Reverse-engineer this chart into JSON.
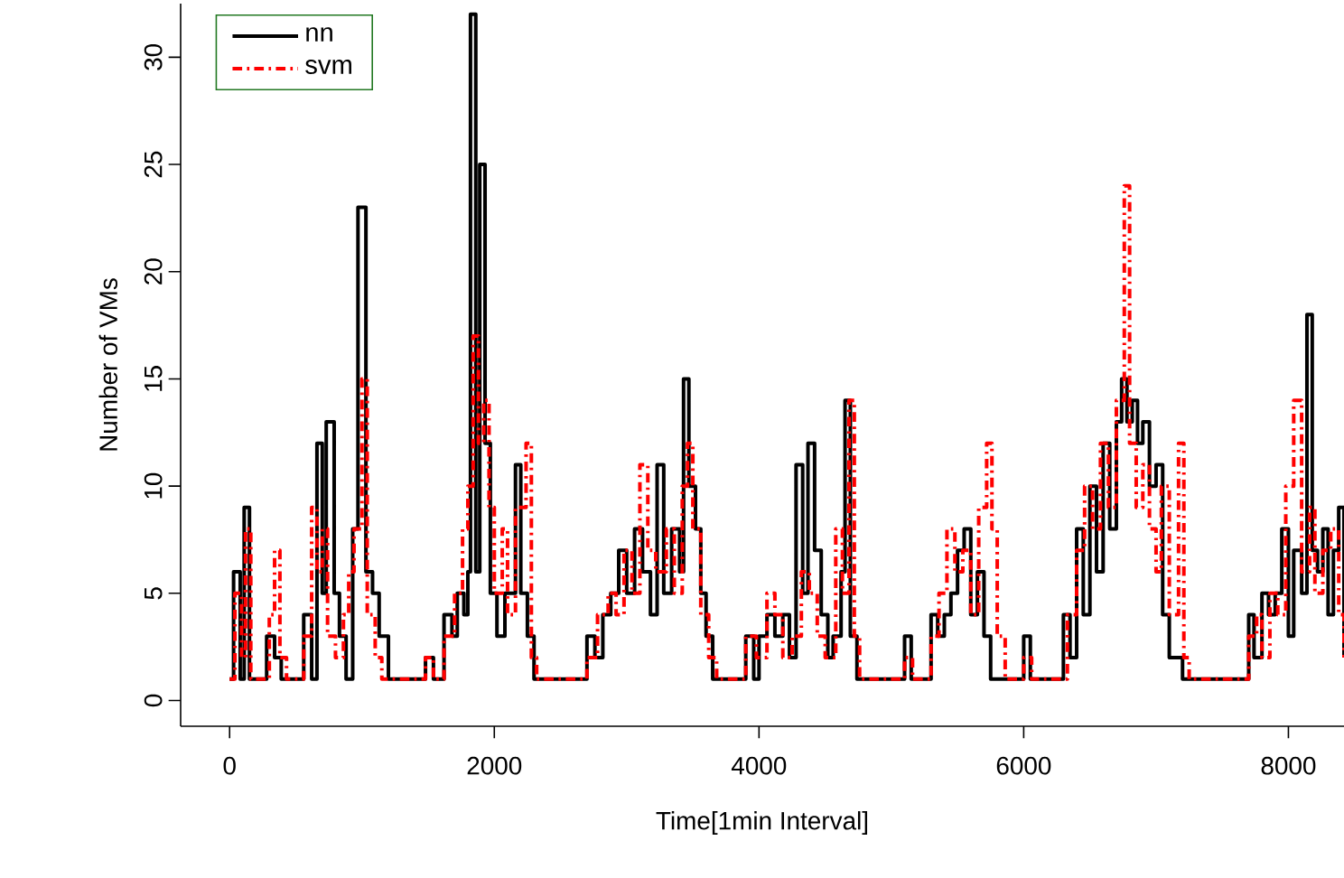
{
  "chart_data": {
    "type": "step",
    "xlabel": "Time[1min Interval]",
    "ylabel": "Number of VMs",
    "xlim": [
      -370,
      8420
    ],
    "ylim": [
      -1.2,
      32.5
    ],
    "xticks": [
      0,
      2000,
      4000,
      6000,
      8000
    ],
    "yticks": [
      0,
      5,
      10,
      15,
      20,
      25,
      30
    ],
    "legend": "top left",
    "grid": false,
    "marker": "none",
    "series": [
      {
        "name": "nn",
        "color": "#000000",
        "line_style": "solid",
        "x": [
          0,
          30,
          80,
          110,
          150,
          280,
          340,
          390,
          560,
          620,
          660,
          700,
          730,
          790,
          830,
          880,
          930,
          970,
          1030,
          1080,
          1130,
          1200,
          1480,
          1540,
          1620,
          1680,
          1720,
          1770,
          1800,
          1820,
          1860,
          1890,
          1930,
          1970,
          2020,
          2080,
          2160,
          2200,
          2250,
          2300,
          2700,
          2760,
          2820,
          2880,
          2940,
          3000,
          3060,
          3120,
          3180,
          3230,
          3280,
          3340,
          3400,
          3430,
          3470,
          3520,
          3560,
          3600,
          3650,
          3900,
          3960,
          4000,
          4060,
          4120,
          4180,
          4230,
          4280,
          4330,
          4370,
          4420,
          4470,
          4520,
          4560,
          4620,
          4650,
          4690,
          4740,
          5100,
          5150,
          5300,
          5350,
          5400,
          5450,
          5500,
          5550,
          5600,
          5650,
          5700,
          5750,
          6000,
          6050,
          6300,
          6350,
          6400,
          6450,
          6500,
          6550,
          6600,
          6650,
          6700,
          6740,
          6780,
          6820,
          6860,
          6900,
          6950,
          7000,
          7050,
          7100,
          7200,
          7700,
          7740,
          7800,
          7850,
          7900,
          7950,
          8000,
          8040,
          8100,
          8140,
          8180,
          8220,
          8260,
          8300,
          8340,
          8380,
          8420
        ],
        "values": [
          1,
          6,
          1,
          9,
          1,
          3,
          2,
          1,
          4,
          1,
          12,
          5,
          13,
          5,
          3,
          1,
          8,
          23,
          6,
          5,
          3,
          1,
          2,
          1,
          4,
          3,
          5,
          4,
          6,
          32,
          6,
          25,
          12,
          5,
          3,
          5,
          11,
          5,
          3,
          1,
          3,
          2,
          4,
          5,
          7,
          5,
          8,
          6,
          4,
          11,
          5,
          8,
          6,
          15,
          10,
          8,
          5,
          3,
          1,
          3,
          1,
          3,
          4,
          3,
          4,
          2,
          11,
          5,
          12,
          7,
          4,
          2,
          3,
          6,
          14,
          3,
          1,
          3,
          1,
          4,
          3,
          4,
          5,
          7,
          8,
          4,
          6,
          3,
          1,
          3,
          1,
          4,
          2,
          8,
          4,
          10,
          6,
          12,
          8,
          13,
          15,
          13,
          14,
          12,
          13,
          10,
          11,
          4,
          2,
          1,
          4,
          2,
          5,
          4,
          5,
          8,
          3,
          7,
          5,
          18,
          7,
          6,
          8,
          4,
          7,
          9,
          2
        ]
      },
      {
        "name": "svm",
        "color": "#ff0000",
        "line_style": "dashdot",
        "x": [
          0,
          40,
          90,
          120,
          160,
          300,
          340,
          380,
          430,
          560,
          620,
          660,
          700,
          740,
          800,
          860,
          900,
          940,
          1000,
          1040,
          1100,
          1150,
          1480,
          1540,
          1620,
          1700,
          1760,
          1800,
          1840,
          1880,
          1920,
          1960,
          2000,
          2060,
          2100,
          2160,
          2240,
          2280,
          2320,
          2700,
          2780,
          2860,
          2920,
          2980,
          3040,
          3100,
          3160,
          3220,
          3300,
          3360,
          3420,
          3460,
          3500,
          3560,
          3620,
          3680,
          3900,
          3980,
          4060,
          4120,
          4180,
          4250,
          4320,
          4380,
          4440,
          4500,
          4580,
          4630,
          4680,
          4720,
          4760,
          5100,
          5160,
          5300,
          5360,
          5420,
          5480,
          5540,
          5600,
          5660,
          5720,
          5760,
          5800,
          5860,
          6000,
          6060,
          6330,
          6400,
          6460,
          6520,
          6580,
          6640,
          6700,
          6760,
          6800,
          6850,
          6900,
          6950,
          7000,
          7040,
          7100,
          7170,
          7210,
          7250,
          7700,
          7760,
          7800,
          7860,
          7920,
          7980,
          8040,
          8100,
          8160,
          8200,
          8260,
          8320,
          8380,
          8420
        ],
        "values": [
          1,
          5,
          2,
          8,
          1,
          4,
          7,
          2,
          1,
          3,
          9,
          6,
          8,
          3,
          2,
          4,
          6,
          8,
          15,
          4,
          2,
          1,
          2,
          1,
          3,
          5,
          8,
          10,
          17,
          12,
          14,
          9,
          5,
          8,
          4,
          9,
          12,
          2,
          1,
          2,
          4,
          5,
          4,
          7,
          5,
          11,
          7,
          6,
          8,
          5,
          10,
          12,
          8,
          4,
          2,
          1,
          3,
          2,
          5,
          4,
          2,
          3,
          6,
          5,
          3,
          2,
          8,
          5,
          14,
          3,
          1,
          2,
          1,
          3,
          5,
          8,
          6,
          7,
          4,
          9,
          12,
          8,
          3,
          1,
          2,
          1,
          4,
          7,
          10,
          8,
          12,
          9,
          14,
          24,
          12,
          9,
          11,
          8,
          6,
          10,
          4,
          12,
          2,
          1,
          3,
          4,
          2,
          5,
          4,
          10,
          14,
          6,
          9,
          5,
          7,
          8,
          4,
          2
        ]
      }
    ]
  }
}
